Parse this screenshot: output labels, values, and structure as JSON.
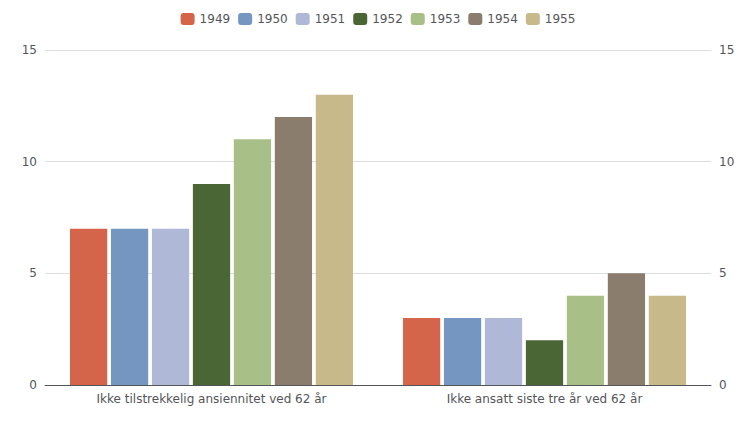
{
  "chart_data": {
    "type": "bar",
    "categories": [
      "Ikke tilstrekkelig ansiennitet ved 62 år",
      "Ikke ansatt siste tre år ved 62 år"
    ],
    "series": [
      {
        "name": "1949",
        "color": "#d4644a",
        "values": [
          7,
          3
        ]
      },
      {
        "name": "1950",
        "color": "#7496c0",
        "values": [
          7,
          3
        ]
      },
      {
        "name": "1951",
        "color": "#b0b8d8",
        "values": [
          7,
          3
        ]
      },
      {
        "name": "1952",
        "color": "#4a6635",
        "values": [
          9,
          2
        ]
      },
      {
        "name": "1953",
        "color": "#a8bf88",
        "values": [
          11,
          4
        ]
      },
      {
        "name": "1954",
        "color": "#8a7d6e",
        "values": [
          12,
          5
        ]
      },
      {
        "name": "1955",
        "color": "#c8b98a",
        "values": [
          13,
          4
        ]
      }
    ],
    "ylim": [
      0,
      15
    ],
    "yticks": [
      0,
      5,
      10,
      15
    ],
    "y2lim": [
      0,
      15
    ],
    "y2ticks": [
      0,
      5,
      10,
      15
    ],
    "grid": true,
    "legend": "top"
  }
}
